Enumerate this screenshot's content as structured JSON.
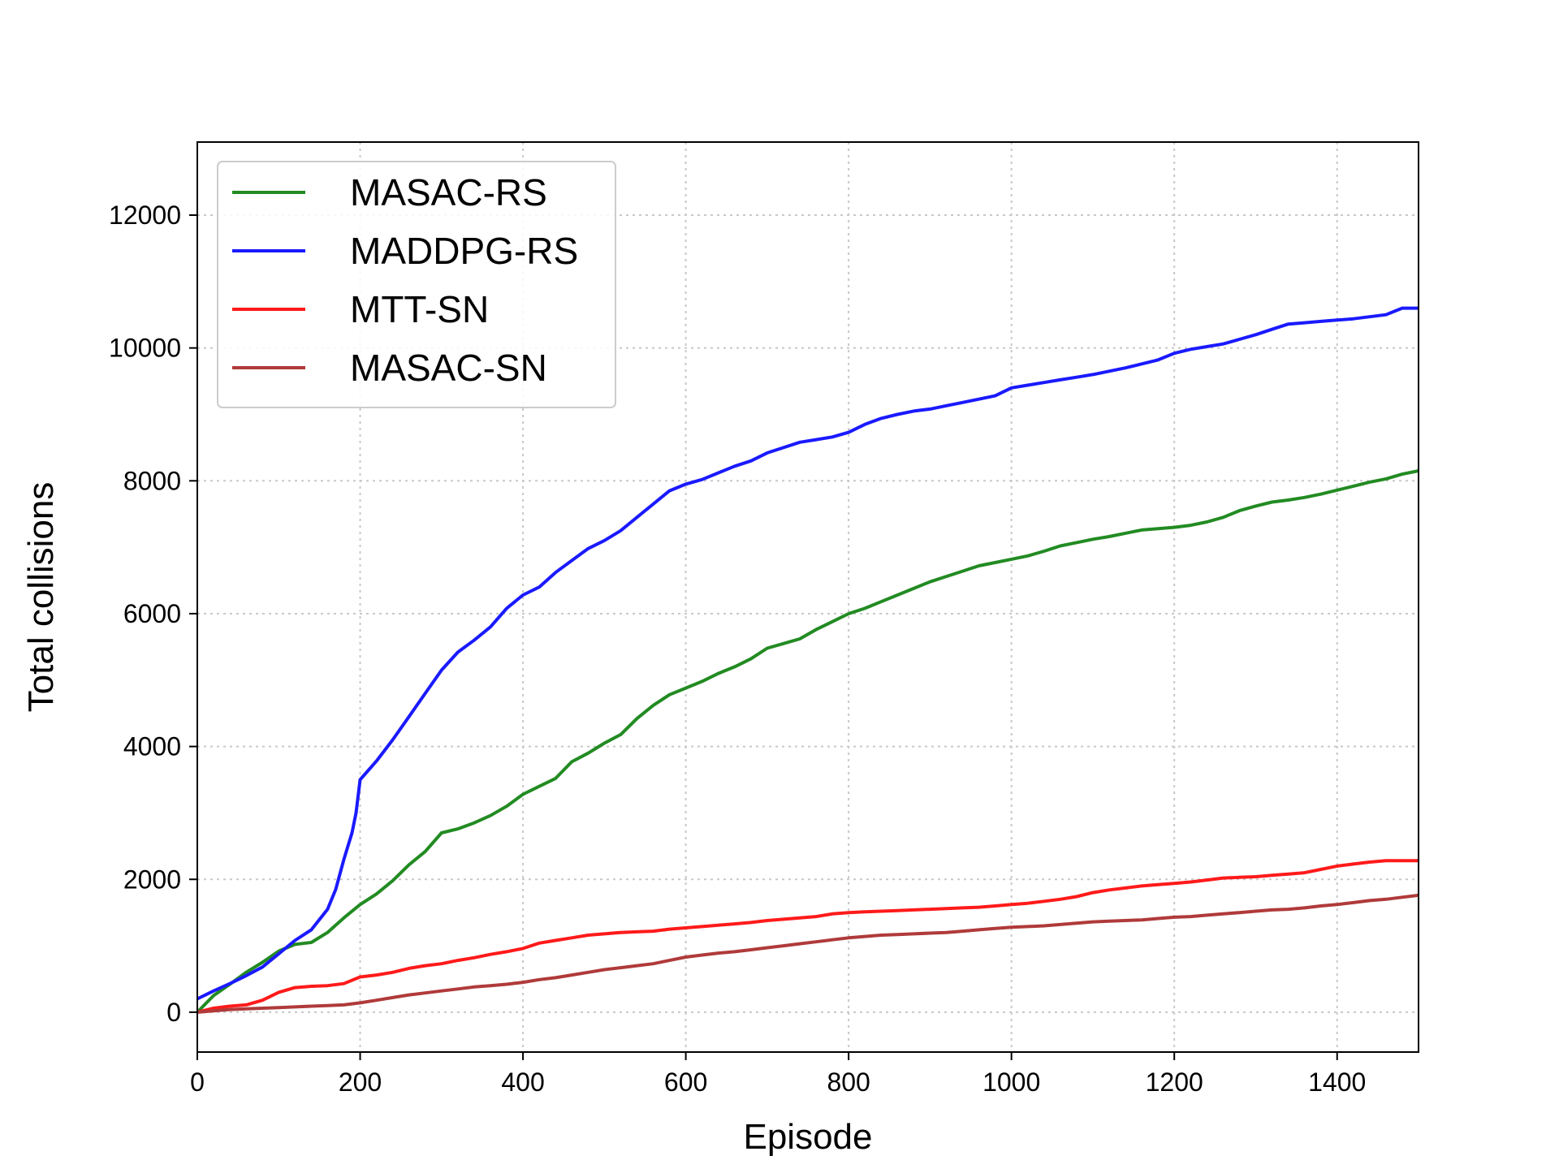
{
  "chart_data": {
    "type": "line",
    "title": "",
    "xlabel": "Episode",
    "ylabel": "Total collisions",
    "xlim": [
      0,
      1500
    ],
    "ylim": [
      -600,
      13100
    ],
    "xticks": [
      0,
      200,
      400,
      600,
      800,
      1000,
      1200,
      1400
    ],
    "yticks": [
      0,
      2000,
      4000,
      6000,
      8000,
      10000,
      12000
    ],
    "xtick_labels": [
      "0",
      "200",
      "400",
      "600",
      "800",
      "1000",
      "1200",
      "1400"
    ],
    "ytick_labels": [
      "0",
      "2000",
      "4000",
      "6000",
      "8000",
      "10000",
      "12000"
    ],
    "grid": true,
    "legend_position": "top-left",
    "series": [
      {
        "name": "MASAC-RS",
        "color": "#228b22",
        "points": [
          [
            0,
            0
          ],
          [
            20,
            250
          ],
          [
            40,
            420
          ],
          [
            60,
            600
          ],
          [
            80,
            750
          ],
          [
            100,
            920
          ],
          [
            120,
            1020
          ],
          [
            140,
            1050
          ],
          [
            160,
            1200
          ],
          [
            180,
            1420
          ],
          [
            200,
            1620
          ],
          [
            220,
            1780
          ],
          [
            240,
            1980
          ],
          [
            260,
            2220
          ],
          [
            280,
            2420
          ],
          [
            300,
            2700
          ],
          [
            320,
            2760
          ],
          [
            340,
            2850
          ],
          [
            360,
            2960
          ],
          [
            380,
            3100
          ],
          [
            400,
            3280
          ],
          [
            420,
            3400
          ],
          [
            440,
            3520
          ],
          [
            460,
            3770
          ],
          [
            480,
            3900
          ],
          [
            500,
            4050
          ],
          [
            520,
            4180
          ],
          [
            540,
            4420
          ],
          [
            560,
            4620
          ],
          [
            580,
            4780
          ],
          [
            600,
            4880
          ],
          [
            620,
            4980
          ],
          [
            640,
            5100
          ],
          [
            660,
            5200
          ],
          [
            680,
            5320
          ],
          [
            700,
            5480
          ],
          [
            720,
            5550
          ],
          [
            740,
            5620
          ],
          [
            760,
            5760
          ],
          [
            780,
            5880
          ],
          [
            800,
            6000
          ],
          [
            820,
            6080
          ],
          [
            840,
            6180
          ],
          [
            860,
            6280
          ],
          [
            880,
            6380
          ],
          [
            900,
            6480
          ],
          [
            920,
            6560
          ],
          [
            940,
            6640
          ],
          [
            960,
            6720
          ],
          [
            980,
            6770
          ],
          [
            1000,
            6820
          ],
          [
            1020,
            6870
          ],
          [
            1040,
            6940
          ],
          [
            1060,
            7020
          ],
          [
            1080,
            7070
          ],
          [
            1100,
            7120
          ],
          [
            1120,
            7160
          ],
          [
            1140,
            7210
          ],
          [
            1160,
            7260
          ],
          [
            1180,
            7280
          ],
          [
            1200,
            7300
          ],
          [
            1220,
            7330
          ],
          [
            1240,
            7380
          ],
          [
            1260,
            7450
          ],
          [
            1280,
            7550
          ],
          [
            1300,
            7620
          ],
          [
            1320,
            7680
          ],
          [
            1340,
            7710
          ],
          [
            1360,
            7750
          ],
          [
            1380,
            7800
          ],
          [
            1400,
            7860
          ],
          [
            1420,
            7920
          ],
          [
            1440,
            7980
          ],
          [
            1460,
            8030
          ],
          [
            1480,
            8100
          ],
          [
            1500,
            8150
          ]
        ]
      },
      {
        "name": "MADDPG-RS",
        "color": "#1a1aff",
        "points": [
          [
            0,
            200
          ],
          [
            20,
            320
          ],
          [
            40,
            430
          ],
          [
            60,
            550
          ],
          [
            80,
            680
          ],
          [
            100,
            880
          ],
          [
            120,
            1080
          ],
          [
            140,
            1240
          ],
          [
            160,
            1550
          ],
          [
            170,
            1850
          ],
          [
            180,
            2300
          ],
          [
            190,
            2700
          ],
          [
            195,
            3000
          ],
          [
            200,
            3500
          ],
          [
            220,
            3780
          ],
          [
            240,
            4100
          ],
          [
            260,
            4450
          ],
          [
            280,
            4800
          ],
          [
            300,
            5150
          ],
          [
            320,
            5420
          ],
          [
            340,
            5600
          ],
          [
            360,
            5800
          ],
          [
            380,
            6080
          ],
          [
            400,
            6280
          ],
          [
            420,
            6400
          ],
          [
            440,
            6620
          ],
          [
            460,
            6800
          ],
          [
            480,
            6980
          ],
          [
            500,
            7100
          ],
          [
            520,
            7250
          ],
          [
            540,
            7450
          ],
          [
            560,
            7650
          ],
          [
            580,
            7850
          ],
          [
            600,
            7950
          ],
          [
            620,
            8020
          ],
          [
            640,
            8120
          ],
          [
            660,
            8220
          ],
          [
            680,
            8300
          ],
          [
            700,
            8420
          ],
          [
            720,
            8500
          ],
          [
            740,
            8580
          ],
          [
            760,
            8620
          ],
          [
            780,
            8660
          ],
          [
            800,
            8730
          ],
          [
            820,
            8850
          ],
          [
            840,
            8940
          ],
          [
            860,
            9000
          ],
          [
            880,
            9050
          ],
          [
            900,
            9080
          ],
          [
            920,
            9130
          ],
          [
            940,
            9180
          ],
          [
            960,
            9230
          ],
          [
            980,
            9280
          ],
          [
            1000,
            9400
          ],
          [
            1020,
            9440
          ],
          [
            1040,
            9480
          ],
          [
            1060,
            9520
          ],
          [
            1080,
            9560
          ],
          [
            1100,
            9600
          ],
          [
            1120,
            9650
          ],
          [
            1140,
            9700
          ],
          [
            1160,
            9760
          ],
          [
            1180,
            9820
          ],
          [
            1200,
            9920
          ],
          [
            1220,
            9980
          ],
          [
            1240,
            10020
          ],
          [
            1260,
            10060
          ],
          [
            1280,
            10130
          ],
          [
            1300,
            10200
          ],
          [
            1320,
            10280
          ],
          [
            1340,
            10360
          ],
          [
            1360,
            10380
          ],
          [
            1380,
            10400
          ],
          [
            1400,
            10420
          ],
          [
            1420,
            10440
          ],
          [
            1440,
            10470
          ],
          [
            1460,
            10500
          ],
          [
            1480,
            10600
          ],
          [
            1500,
            10600
          ]
        ]
      },
      {
        "name": "MTT-SN",
        "color": "#ff1a1a",
        "points": [
          [
            0,
            0
          ],
          [
            20,
            60
          ],
          [
            40,
            90
          ],
          [
            60,
            110
          ],
          [
            80,
            180
          ],
          [
            100,
            300
          ],
          [
            120,
            370
          ],
          [
            140,
            390
          ],
          [
            160,
            400
          ],
          [
            180,
            430
          ],
          [
            200,
            530
          ],
          [
            220,
            560
          ],
          [
            240,
            600
          ],
          [
            260,
            660
          ],
          [
            280,
            700
          ],
          [
            300,
            730
          ],
          [
            320,
            780
          ],
          [
            340,
            820
          ],
          [
            360,
            870
          ],
          [
            380,
            910
          ],
          [
            400,
            960
          ],
          [
            420,
            1040
          ],
          [
            440,
            1080
          ],
          [
            460,
            1120
          ],
          [
            480,
            1160
          ],
          [
            500,
            1180
          ],
          [
            520,
            1200
          ],
          [
            540,
            1210
          ],
          [
            560,
            1220
          ],
          [
            580,
            1250
          ],
          [
            600,
            1270
          ],
          [
            620,
            1290
          ],
          [
            640,
            1310
          ],
          [
            660,
            1330
          ],
          [
            680,
            1350
          ],
          [
            700,
            1380
          ],
          [
            720,
            1400
          ],
          [
            740,
            1420
          ],
          [
            760,
            1440
          ],
          [
            780,
            1480
          ],
          [
            800,
            1500
          ],
          [
            820,
            1510
          ],
          [
            840,
            1520
          ],
          [
            860,
            1530
          ],
          [
            880,
            1540
          ],
          [
            900,
            1550
          ],
          [
            920,
            1560
          ],
          [
            940,
            1570
          ],
          [
            960,
            1580
          ],
          [
            980,
            1600
          ],
          [
            1000,
            1620
          ],
          [
            1020,
            1640
          ],
          [
            1040,
            1670
          ],
          [
            1060,
            1700
          ],
          [
            1080,
            1740
          ],
          [
            1100,
            1800
          ],
          [
            1120,
            1840
          ],
          [
            1140,
            1870
          ],
          [
            1160,
            1900
          ],
          [
            1180,
            1920
          ],
          [
            1200,
            1940
          ],
          [
            1220,
            1960
          ],
          [
            1240,
            1990
          ],
          [
            1260,
            2020
          ],
          [
            1280,
            2030
          ],
          [
            1300,
            2040
          ],
          [
            1320,
            2060
          ],
          [
            1340,
            2080
          ],
          [
            1360,
            2100
          ],
          [
            1380,
            2150
          ],
          [
            1400,
            2200
          ],
          [
            1420,
            2230
          ],
          [
            1440,
            2260
          ],
          [
            1460,
            2280
          ],
          [
            1480,
            2280
          ],
          [
            1500,
            2280
          ]
        ]
      },
      {
        "name": "MASAC-SN",
        "color": "#b03a3a",
        "points": [
          [
            0,
            0
          ],
          [
            20,
            20
          ],
          [
            40,
            40
          ],
          [
            60,
            50
          ],
          [
            80,
            60
          ],
          [
            100,
            70
          ],
          [
            120,
            80
          ],
          [
            140,
            90
          ],
          [
            160,
            100
          ],
          [
            180,
            110
          ],
          [
            200,
            140
          ],
          [
            220,
            180
          ],
          [
            240,
            220
          ],
          [
            260,
            260
          ],
          [
            280,
            290
          ],
          [
            300,
            320
          ],
          [
            320,
            350
          ],
          [
            340,
            380
          ],
          [
            360,
            400
          ],
          [
            380,
            420
          ],
          [
            400,
            450
          ],
          [
            420,
            490
          ],
          [
            440,
            520
          ],
          [
            460,
            560
          ],
          [
            480,
            600
          ],
          [
            500,
            640
          ],
          [
            520,
            670
          ],
          [
            540,
            700
          ],
          [
            560,
            730
          ],
          [
            580,
            780
          ],
          [
            600,
            830
          ],
          [
            620,
            860
          ],
          [
            640,
            890
          ],
          [
            660,
            910
          ],
          [
            680,
            940
          ],
          [
            700,
            970
          ],
          [
            720,
            1000
          ],
          [
            740,
            1030
          ],
          [
            760,
            1060
          ],
          [
            780,
            1090
          ],
          [
            800,
            1120
          ],
          [
            820,
            1140
          ],
          [
            840,
            1160
          ],
          [
            860,
            1170
          ],
          [
            880,
            1180
          ],
          [
            900,
            1190
          ],
          [
            920,
            1200
          ],
          [
            940,
            1220
          ],
          [
            960,
            1240
          ],
          [
            980,
            1260
          ],
          [
            1000,
            1280
          ],
          [
            1020,
            1290
          ],
          [
            1040,
            1300
          ],
          [
            1060,
            1320
          ],
          [
            1080,
            1340
          ],
          [
            1100,
            1360
          ],
          [
            1120,
            1370
          ],
          [
            1140,
            1380
          ],
          [
            1160,
            1390
          ],
          [
            1180,
            1410
          ],
          [
            1200,
            1430
          ],
          [
            1220,
            1440
          ],
          [
            1240,
            1460
          ],
          [
            1260,
            1480
          ],
          [
            1280,
            1500
          ],
          [
            1300,
            1520
          ],
          [
            1320,
            1540
          ],
          [
            1340,
            1550
          ],
          [
            1360,
            1570
          ],
          [
            1380,
            1600
          ],
          [
            1400,
            1620
          ],
          [
            1420,
            1650
          ],
          [
            1440,
            1680
          ],
          [
            1460,
            1700
          ],
          [
            1480,
            1730
          ],
          [
            1500,
            1760
          ]
        ]
      }
    ]
  }
}
